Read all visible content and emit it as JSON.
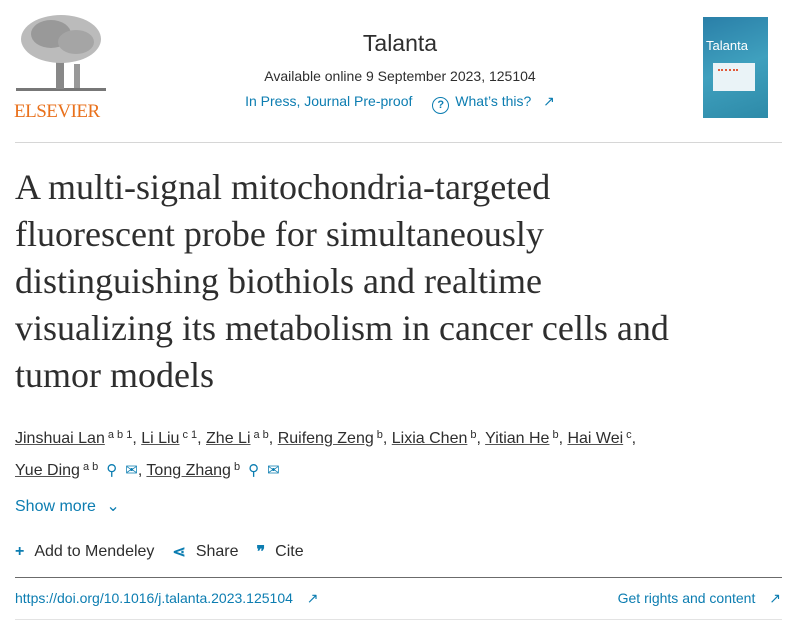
{
  "header": {
    "publisher_logo": "ELSEVIER",
    "journal": "Talanta",
    "available": "Available online 9 September 2023, 125104",
    "status": "In Press, Journal Pre-proof",
    "whats_this": "What’s this?",
    "cover_title": "Talanta"
  },
  "article": {
    "title_lines": [
      "A multi-signal mitochondria-targeted",
      "fluorescent probe for simultaneously",
      "distinguishing biothiols and realtime",
      "visualizing its metabolism in cancer cells and",
      "tumor models"
    ],
    "authors": [
      {
        "name": "Jinshuai Lan",
        "sup": "a b 1"
      },
      {
        "name": "Li Liu",
        "sup": "c 1"
      },
      {
        "name": "Zhe Li",
        "sup": "a b"
      },
      {
        "name": "Ruifeng Zeng",
        "sup": "b"
      },
      {
        "name": "Lixia Chen",
        "sup": "b"
      },
      {
        "name": "Yitian He",
        "sup": "b"
      },
      {
        "name": "Hai Wei",
        "sup": "c"
      },
      {
        "name": "Yue Ding",
        "sup": "a b"
      },
      {
        "name": "Tong Zhang",
        "sup": "b"
      }
    ],
    "show_more": "Show more"
  },
  "actions": {
    "mendeley": "Add to Mendeley",
    "share": "Share",
    "cite": "Cite"
  },
  "footer": {
    "doi": "https://doi.org/10.1016/j.talanta.2023.125104",
    "rights": "Get rights and content"
  },
  "colors": {
    "link": "#0c7db1",
    "elsevier": "#e9711c"
  }
}
